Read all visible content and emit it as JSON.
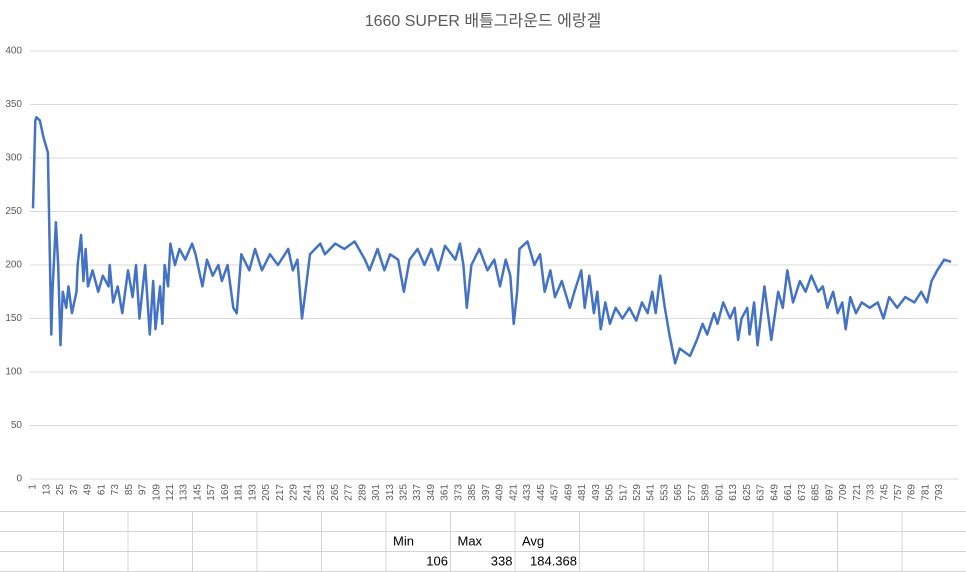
{
  "chart_data": {
    "type": "line",
    "title": "1660 SUPER 배틀그라운드 에랑겔",
    "x": [
      1,
      3,
      4,
      7,
      10,
      14,
      17,
      18,
      21,
      23,
      25,
      27,
      30,
      32,
      35,
      39,
      40,
      43,
      45,
      47,
      49,
      53,
      58,
      62,
      67,
      68,
      71,
      75,
      79,
      84,
      88,
      91,
      94,
      99,
      103,
      106,
      108,
      112,
      114,
      116,
      119,
      121,
      125,
      129,
      134,
      140,
      143,
      149,
      153,
      158,
      163,
      166,
      171,
      176,
      179,
      183,
      190,
      195,
      201,
      208,
      215,
      224,
      228,
      232,
      236,
      239,
      243,
      252,
      256,
      265,
      273,
      282,
      291,
      295,
      302,
      308,
      313,
      320,
      325,
      330,
      337,
      343,
      349,
      355,
      361,
      370,
      374,
      377,
      380,
      384,
      391,
      398,
      404,
      409,
      414,
      418,
      421,
      424,
      426,
      433,
      439,
      444,
      448,
      453,
      457,
      463,
      470,
      474,
      480,
      483,
      487,
      491,
      494,
      497,
      501,
      505,
      510,
      516,
      522,
      528,
      533,
      538,
      542,
      545,
      549,
      553,
      557,
      562,
      566,
      575,
      581,
      586,
      590,
      596,
      599,
      604,
      610,
      614,
      617,
      620,
      625,
      627,
      631,
      634,
      640,
      646,
      652,
      656,
      660,
      665,
      671,
      676,
      681,
      687,
      691,
      695,
      700,
      704,
      708,
      711,
      715,
      720,
      725,
      732,
      739,
      744,
      749,
      756,
      763,
      771,
      777,
      782,
      786,
      791,
      797,
      803
    ],
    "series": [
      {
        "color": "#4472c4",
        "values": [
          253,
          335,
          338,
          335,
          320,
          305,
          135,
          175,
          240,
          200,
          125,
          175,
          160,
          180,
          155,
          175,
          200,
          228,
          185,
          215,
          180,
          195,
          175,
          190,
          180,
          200,
          165,
          180,
          155,
          195,
          170,
          200,
          150,
          200,
          135,
          185,
          140,
          180,
          145,
          200,
          180,
          220,
          200,
          215,
          205,
          220,
          210,
          180,
          205,
          190,
          200,
          185,
          200,
          160,
          155,
          210,
          195,
          215,
          195,
          210,
          200,
          215,
          195,
          205,
          150,
          175,
          210,
          220,
          210,
          220,
          215,
          222,
          205,
          195,
          215,
          195,
          210,
          205,
          175,
          205,
          215,
          200,
          215,
          195,
          218,
          205,
          220,
          200,
          160,
          200,
          215,
          195,
          205,
          180,
          205,
          190,
          145,
          175,
          215,
          222,
          200,
          210,
          175,
          195,
          170,
          185,
          160,
          175,
          195,
          160,
          190,
          155,
          175,
          140,
          165,
          145,
          160,
          150,
          160,
          148,
          165,
          155,
          175,
          155,
          190,
          160,
          135,
          108,
          122,
          115,
          130,
          145,
          135,
          155,
          145,
          165,
          150,
          160,
          130,
          150,
          160,
          135,
          165,
          125,
          180,
          130,
          175,
          160,
          195,
          165,
          185,
          175,
          190,
          175,
          180,
          160,
          175,
          155,
          165,
          140,
          170,
          155,
          165,
          160,
          165,
          150,
          170,
          160,
          170,
          165,
          175,
          165,
          185,
          195,
          205,
          203
        ]
      }
    ],
    "xlim": [
      1,
      803
    ],
    "xticks": [
      1,
      13,
      25,
      37,
      49,
      61,
      73,
      85,
      97,
      109,
      121,
      133,
      145,
      157,
      169,
      181,
      193,
      205,
      217,
      229,
      241,
      253,
      265,
      277,
      289,
      301,
      313,
      325,
      337,
      349,
      361,
      373,
      385,
      397,
      409,
      421,
      433,
      445,
      457,
      469,
      481,
      493,
      505,
      517,
      529,
      541,
      553,
      565,
      577,
      589,
      601,
      613,
      625,
      637,
      649,
      661,
      673,
      685,
      697,
      709,
      721,
      733,
      745,
      757,
      769,
      781,
      793
    ],
    "ylim": [
      0,
      400
    ],
    "yticks": [
      0,
      50,
      100,
      150,
      200,
      250,
      300,
      350,
      400
    ],
    "grid": true
  },
  "table": {
    "headers": [
      "Min",
      "Max",
      "Avg"
    ],
    "values": [
      106,
      338,
      184.368
    ]
  }
}
